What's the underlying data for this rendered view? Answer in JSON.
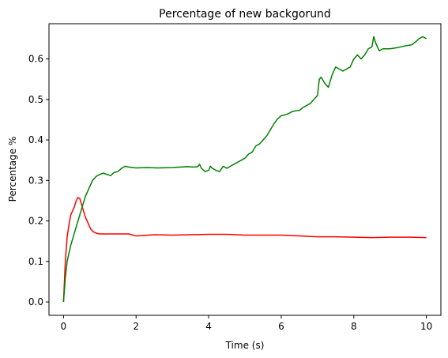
{
  "chart_data": {
    "type": "line",
    "title": "Percentage of new backgorund",
    "xlabel": "Time (s)",
    "ylabel": "Percentage %",
    "xlim": [
      -0.4,
      10.4
    ],
    "ylim": [
      -0.033,
      0.687
    ],
    "xticks": [
      0,
      2,
      4,
      6,
      8,
      10
    ],
    "xtick_labels": [
      "0",
      "2",
      "4",
      "6",
      "8",
      "10"
    ],
    "yticks": [
      0.0,
      0.1,
      0.2,
      0.3,
      0.4,
      0.5,
      0.6
    ],
    "ytick_labels": [
      "0.0",
      "0.1",
      "0.2",
      "0.3",
      "0.4",
      "0.5",
      "0.6"
    ],
    "grid": false,
    "series": [
      {
        "color": "#ff0000",
        "x": [
          0,
          0.05,
          0.1,
          0.15,
          0.2,
          0.25,
          0.3,
          0.35,
          0.4,
          0.45,
          0.5,
          0.55,
          0.6,
          0.65,
          0.7,
          0.75,
          0.8,
          0.85,
          0.9,
          1.0,
          1.2,
          1.5,
          1.8,
          2.0,
          2.2,
          2.5,
          3.0,
          3.5,
          4.0,
          4.5,
          5.0,
          5.5,
          6.0,
          6.5,
          7.0,
          7.5,
          8.0,
          8.5,
          9.0,
          9.5,
          10.0
        ],
        "y": [
          0.0,
          0.1,
          0.16,
          0.19,
          0.215,
          0.225,
          0.235,
          0.25,
          0.258,
          0.255,
          0.24,
          0.225,
          0.21,
          0.2,
          0.19,
          0.18,
          0.175,
          0.172,
          0.17,
          0.168,
          0.168,
          0.168,
          0.168,
          0.163,
          0.164,
          0.166,
          0.165,
          0.166,
          0.167,
          0.167,
          0.165,
          0.165,
          0.165,
          0.163,
          0.161,
          0.161,
          0.16,
          0.159,
          0.16,
          0.16,
          0.159
        ]
      },
      {
        "color": "#008000",
        "x": [
          0,
          0.05,
          0.1,
          0.2,
          0.3,
          0.4,
          0.5,
          0.6,
          0.7,
          0.8,
          0.9,
          1.0,
          1.1,
          1.2,
          1.3,
          1.4,
          1.5,
          1.6,
          1.7,
          1.8,
          2.0,
          2.3,
          2.6,
          3.0,
          3.4,
          3.6,
          3.7,
          3.75,
          3.8,
          3.9,
          4.0,
          4.05,
          4.1,
          4.2,
          4.3,
          4.4,
          4.5,
          4.6,
          4.7,
          4.8,
          4.9,
          5.0,
          5.1,
          5.2,
          5.3,
          5.4,
          5.5,
          5.6,
          5.7,
          5.8,
          5.9,
          6.0,
          6.1,
          6.2,
          6.3,
          6.4,
          6.5,
          6.6,
          6.7,
          6.8,
          6.9,
          7.0,
          7.05,
          7.1,
          7.2,
          7.3,
          7.4,
          7.5,
          7.6,
          7.7,
          7.8,
          7.9,
          8.0,
          8.1,
          8.2,
          8.3,
          8.4,
          8.5,
          8.55,
          8.6,
          8.7,
          8.8,
          9.0,
          9.2,
          9.4,
          9.6,
          9.7,
          9.8,
          9.9,
          10.0
        ],
        "y": [
          0.0,
          0.06,
          0.1,
          0.14,
          0.17,
          0.2,
          0.23,
          0.26,
          0.28,
          0.3,
          0.31,
          0.315,
          0.318,
          0.315,
          0.312,
          0.32,
          0.322,
          0.33,
          0.335,
          0.333,
          0.331,
          0.332,
          0.331,
          0.332,
          0.334,
          0.333,
          0.334,
          0.34,
          0.33,
          0.322,
          0.325,
          0.335,
          0.33,
          0.325,
          0.322,
          0.335,
          0.33,
          0.335,
          0.34,
          0.345,
          0.35,
          0.355,
          0.365,
          0.37,
          0.385,
          0.39,
          0.4,
          0.41,
          0.425,
          0.44,
          0.452,
          0.46,
          0.462,
          0.465,
          0.47,
          0.472,
          0.473,
          0.48,
          0.485,
          0.49,
          0.5,
          0.51,
          0.55,
          0.555,
          0.54,
          0.53,
          0.56,
          0.58,
          0.575,
          0.57,
          0.575,
          0.58,
          0.6,
          0.61,
          0.6,
          0.61,
          0.625,
          0.63,
          0.655,
          0.64,
          0.62,
          0.625,
          0.625,
          0.628,
          0.632,
          0.635,
          0.642,
          0.65,
          0.655,
          0.65
        ]
      }
    ]
  }
}
